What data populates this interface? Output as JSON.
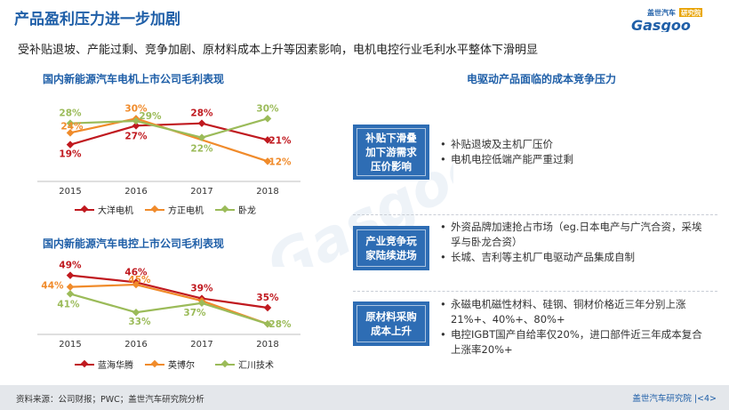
{
  "title": "产品盈利压力进一步加剧",
  "logo": {
    "brand_text": "盖世汽车",
    "tag_text": "研究院",
    "wordmark": "Gasgoo"
  },
  "subtitle": "受补贴退坡、产能过剩、竞争加剧、原材料成本上升等因素影响，电机电控行业毛利水平整体下滑明显",
  "left_heading_1": "国内新能源汽车电机上市公司毛利表现",
  "left_heading_2": "国内新能源汽车电控上市公司毛利表现",
  "right_heading": "电驱动产品面临的成本竞争压力",
  "chart_data": [
    {
      "type": "line",
      "title": "国内新能源汽车电机上市公司毛利表现",
      "categories": [
        "2015",
        "2016",
        "2017",
        "2018"
      ],
      "ylim": [
        5,
        35
      ],
      "series": [
        {
          "name": "大洋电机",
          "color": "#c0191f",
          "values": [
            19,
            27,
            28,
            21
          ],
          "labels": [
            "19%",
            "27%",
            "28%",
            "21%"
          ]
        },
        {
          "name": "方正电机",
          "color": "#f08b2b",
          "values": [
            24,
            30,
            null,
            12
          ],
          "labels": [
            "24%",
            "30%",
            "",
            "12%"
          ]
        },
        {
          "name": "卧龙",
          "color": "#9bbb59",
          "values": [
            28,
            29,
            22,
            30
          ],
          "labels": [
            "28%",
            "29%",
            "22%",
            "30%"
          ]
        }
      ]
    },
    {
      "type": "line",
      "title": "国内新能源汽车电控上市公司毛利表现",
      "categories": [
        "2015",
        "2016",
        "2017",
        "2018"
      ],
      "ylim": [
        25,
        55
      ],
      "series": [
        {
          "name": "蓝海华腾",
          "color": "#c0191f",
          "values": [
            49,
            46,
            39,
            35
          ],
          "labels": [
            "49%",
            "46%",
            "39%",
            "35%"
          ]
        },
        {
          "name": "英博尔",
          "color": "#f08b2b",
          "values": [
            44,
            45,
            38,
            28
          ],
          "labels": [
            "44%",
            "45%",
            "",
            ""
          ]
        },
        {
          "name": "汇川技术",
          "color": "#9bbb59",
          "values": [
            41,
            33,
            37,
            28
          ],
          "labels": [
            "41%",
            "33%",
            "37%",
            "28%"
          ]
        }
      ]
    }
  ],
  "pressures": [
    {
      "label_lines": [
        "补贴下滑叠",
        "加下游需求",
        "压价影响"
      ],
      "bullets": [
        "补贴退坡及主机厂压价",
        "电机电控低端产能严重过剩"
      ]
    },
    {
      "label_lines": [
        "产业竞争玩",
        "家陆续进场"
      ],
      "bullets": [
        "外资品牌加速抢占市场（eg.日本电产与广汽合资，采埃孚与卧龙合资）",
        "长城、吉利等主机厂电驱动产品集成自制"
      ]
    },
    {
      "label_lines": [
        "原材料采购",
        "成本上升"
      ],
      "bullets": [
        "永磁电机磁性材料、硅钢、铜材价格近三年分别上涨21%+、40%+、80%+",
        "电控IGBT国产自给率仅20%，进口部件近三年成本复合上涨率20%+"
      ]
    }
  ],
  "footer": {
    "source": "资料来源：公司财报；PWC；盖世汽车研究院分析",
    "brand_page": "盖世汽车研究院  |<4>"
  }
}
